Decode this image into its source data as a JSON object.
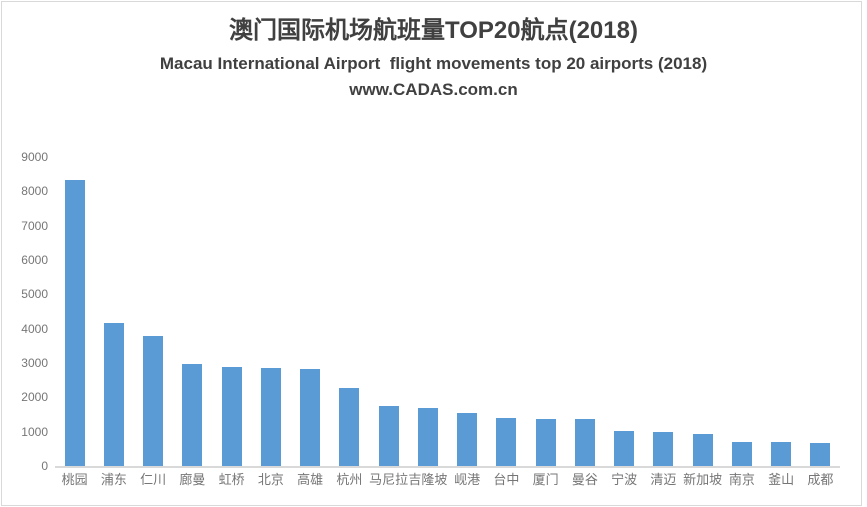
{
  "chart_data": {
    "type": "bar",
    "title": "澳门国际机场航班量TOP20航点(2018)",
    "subtitle": "Macau International Airport  flight movements top 20 airports (2018)",
    "watermark": "www.CADAS.com.cn",
    "categories": [
      "桃园",
      "浦东",
      "仁川",
      "廊曼",
      "虹桥",
      "北京",
      "高雄",
      "杭州",
      "马尼拉",
      "吉隆坡",
      "岘港",
      "台中",
      "厦门",
      "曼谷",
      "宁波",
      "清迈",
      "新加坡",
      "南京",
      "釜山",
      "成都"
    ],
    "values": [
      8340,
      4170,
      3790,
      2960,
      2890,
      2860,
      2840,
      2280,
      1760,
      1690,
      1530,
      1400,
      1370,
      1360,
      1010,
      985,
      945,
      695,
      690,
      675
    ],
    "xlabel": "",
    "ylabel": "",
    "ylim": [
      0,
      9000
    ],
    "yticks": [
      0,
      1000,
      2000,
      3000,
      4000,
      5000,
      6000,
      7000,
      8000,
      9000
    ],
    "grid": false,
    "legend": "none",
    "bar_color": "#5b9bd5",
    "axis_line_color": "#d9d9d9",
    "tick_label_color": "#767676",
    "title_color": "#404040"
  }
}
